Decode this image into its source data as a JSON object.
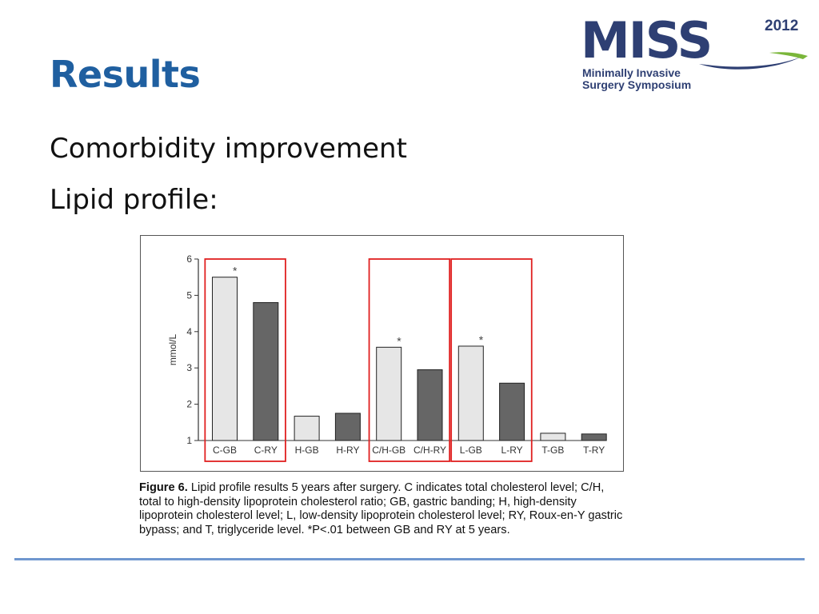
{
  "slide": {
    "title": "Results",
    "bullets": [
      "Comorbidity improvement",
      "Lipid profile:"
    ]
  },
  "logo": {
    "main": "MISS",
    "year": "2012",
    "line1": "Minimally Invasive",
    "line2": "Surgery Symposium"
  },
  "colors": {
    "title": "#1f5fa0",
    "logo": "#2e3f73",
    "gb_bar": "#e6e6e6",
    "ry_bar": "#666666",
    "highlight_box": "#e02020",
    "rule": "#6f97cf"
  },
  "figure": {
    "caption_label": "Figure 6.",
    "caption_text": "Lipid profile results 5 years after surgery. C indicates total cholesterol level; C/H, total to high-density lipoprotein cholesterol ratio; GB, gastric banding; H, high-density lipoprotein cholesterol level; L, low-density lipoprotein cholesterol level; RY, Roux-en-Y gastric bypass; and T, triglyceride level. *P<.01 between GB and RY at 5 years."
  },
  "chart_data": {
    "type": "bar",
    "ylabel": "mmol/L",
    "ylim": [
      1,
      6
    ],
    "yticks": [
      1,
      2,
      3,
      4,
      5,
      6
    ],
    "grid": false,
    "categories": [
      "C-GB",
      "C-RY",
      "H-GB",
      "H-RY",
      "C/H-GB",
      "C/H-RY",
      "L-GB",
      "L-RY",
      "T-GB",
      "T-RY"
    ],
    "values": [
      5.5,
      4.8,
      1.67,
      1.75,
      3.57,
      2.95,
      3.6,
      2.58,
      1.2,
      1.18
    ],
    "bar_groups": [
      "GB",
      "RY",
      "GB",
      "RY",
      "GB",
      "RY",
      "GB",
      "RY",
      "GB",
      "RY"
    ],
    "significance": [
      {
        "category": "C-GB",
        "label": "*"
      },
      {
        "category": "C/H-GB",
        "label": "*"
      },
      {
        "category": "L-GB",
        "label": "*"
      }
    ],
    "highlight_groups": [
      [
        "C-GB",
        "C-RY"
      ],
      [
        "C/H-GB",
        "C/H-RY"
      ],
      [
        "L-GB",
        "L-RY"
      ]
    ]
  }
}
